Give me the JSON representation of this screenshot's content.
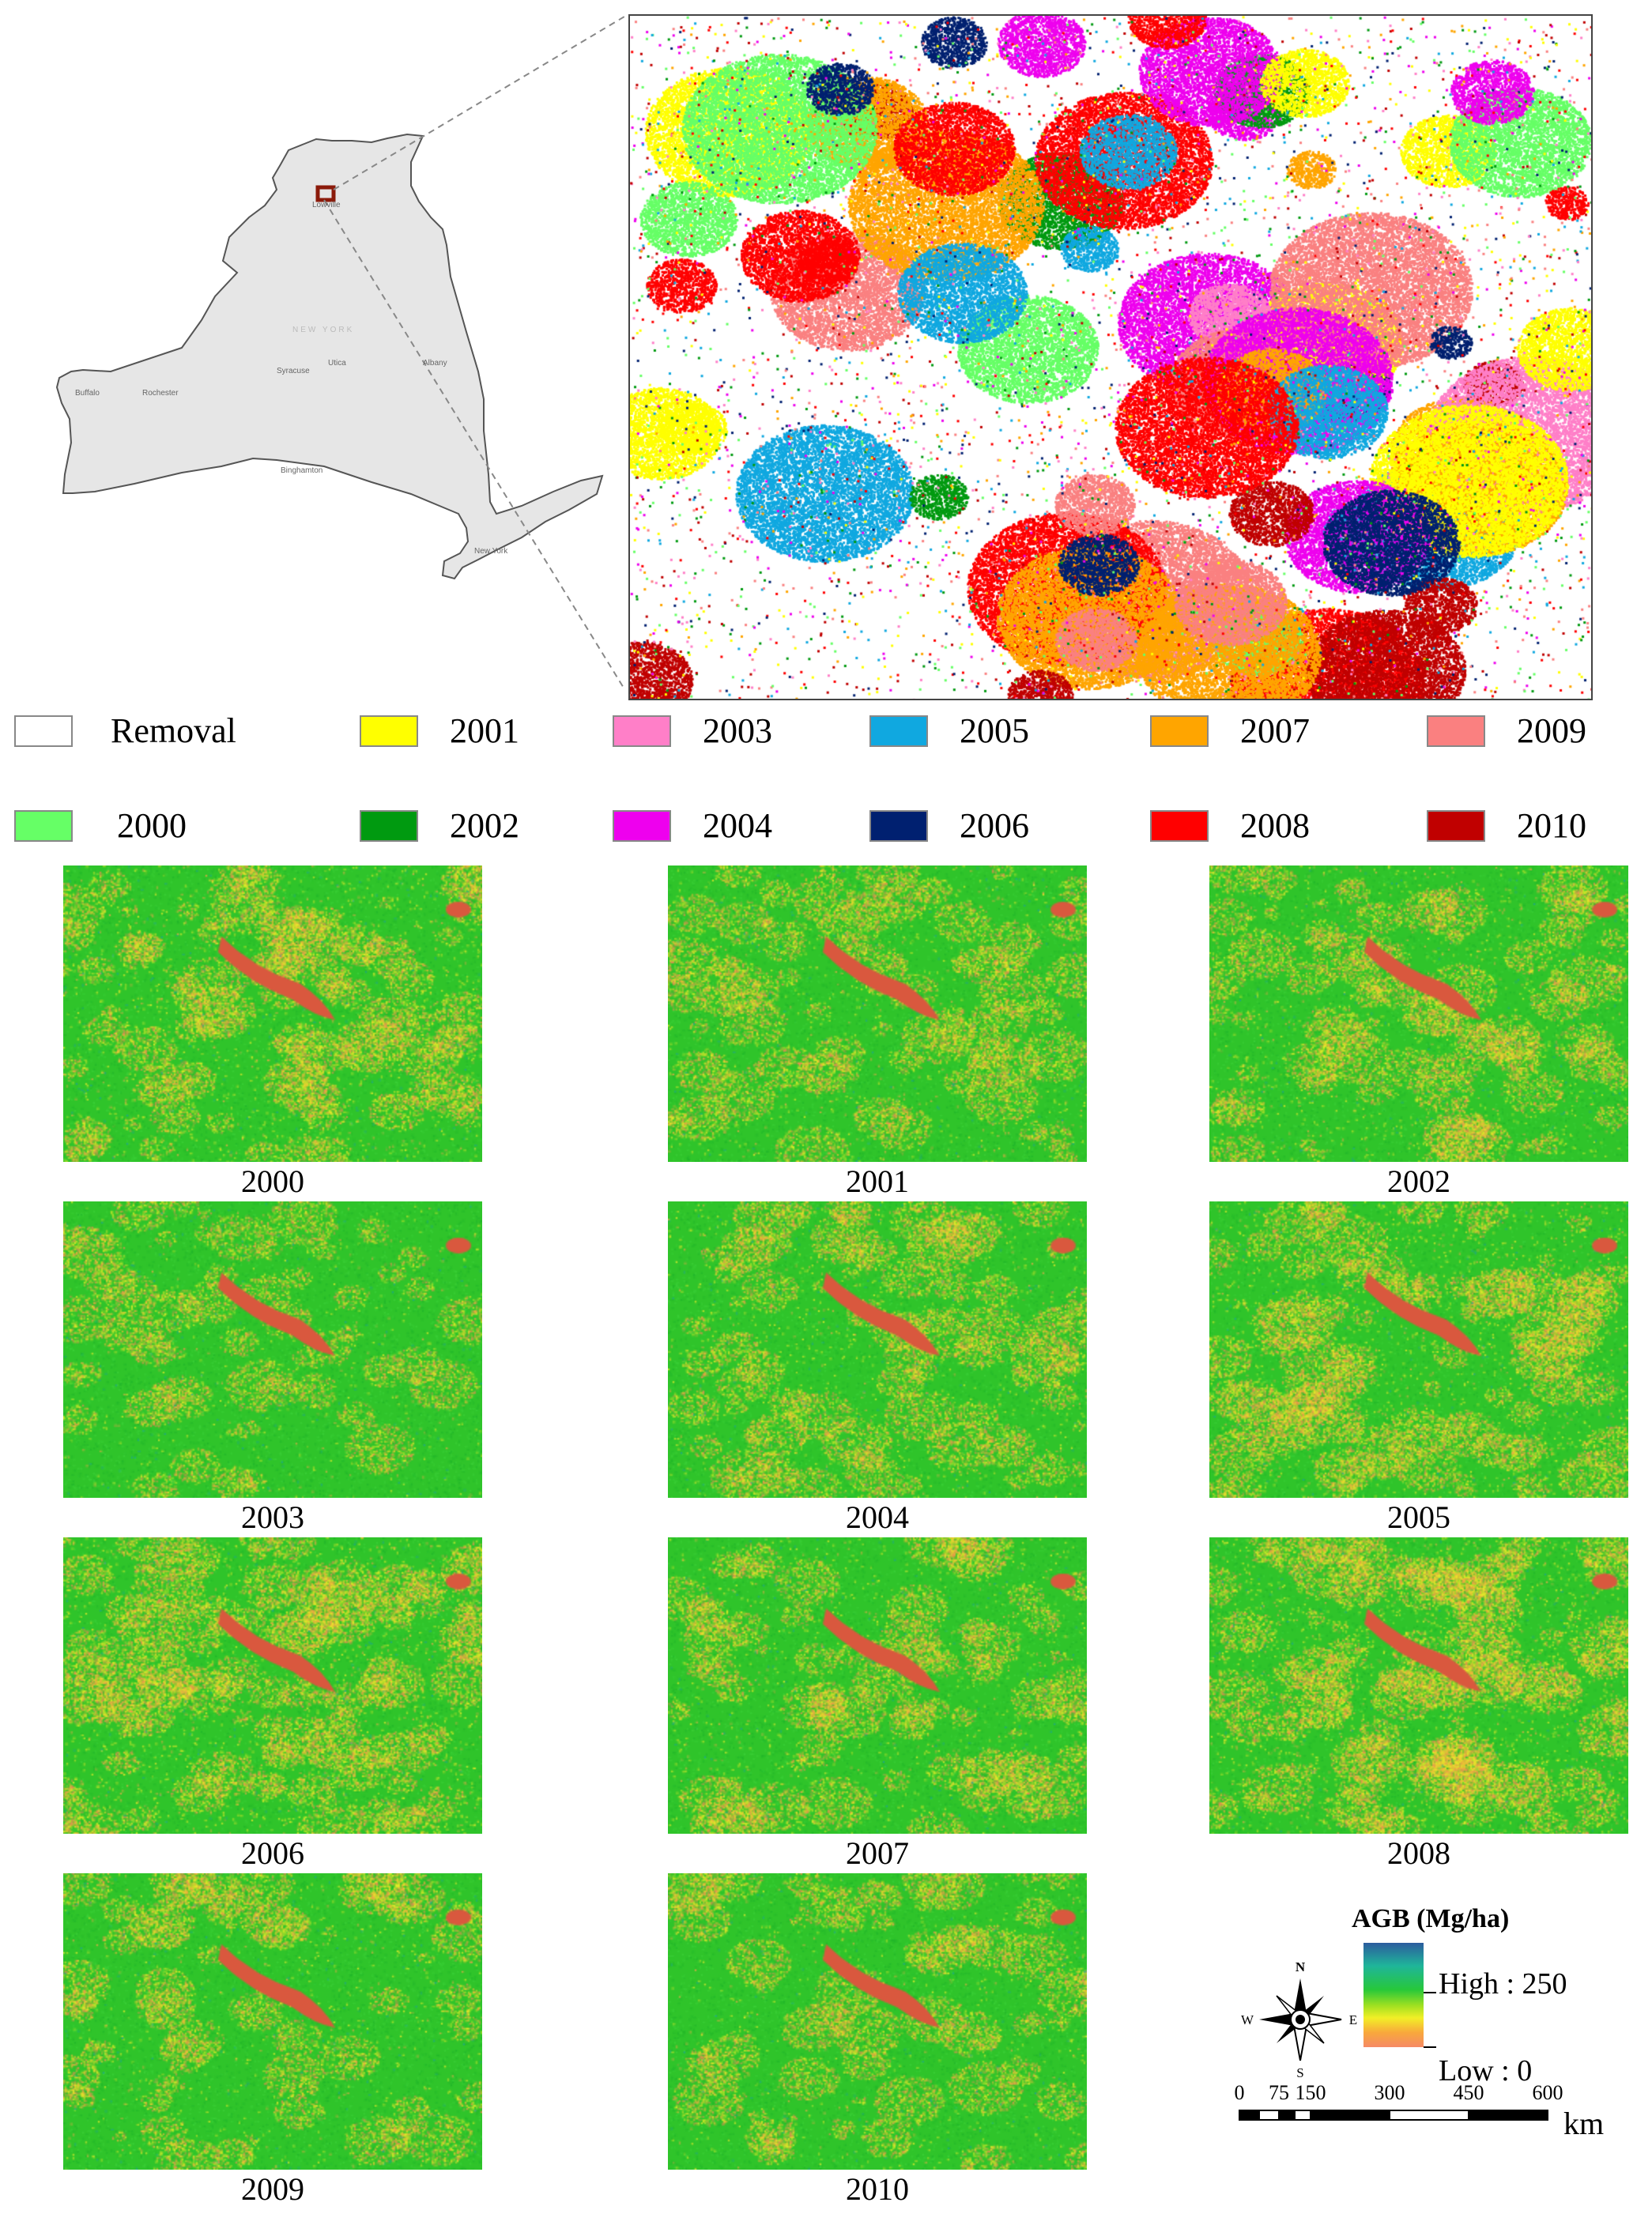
{
  "inset_map": {
    "state_label": "NEW YORK",
    "cities": [
      "Buffalo",
      "Rochester",
      "Syracuse",
      "Utica",
      "Albany",
      "Binghamton",
      "New York",
      "Lowville"
    ],
    "state_fill": "#e6e6e6",
    "highlight_color": "#8b1a0a"
  },
  "legend": {
    "items": [
      {
        "label": "Removal",
        "color": "#ffffff"
      },
      {
        "label": "2001",
        "color": "#ffff00"
      },
      {
        "label": "2003",
        "color": "#ff7fc8"
      },
      {
        "label": "2005",
        "color": "#10a8e0"
      },
      {
        "label": "2007",
        "color": "#ffa500"
      },
      {
        "label": "2009",
        "color": "#fa8080"
      },
      {
        "label": "2000",
        "color": "#66ff66"
      },
      {
        "label": "2002",
        "color": "#009a10"
      },
      {
        "label": "2004",
        "color": "#ee00ee"
      },
      {
        "label": "2006",
        "color": "#002070"
      },
      {
        "label": "2008",
        "color": "#ff0000"
      },
      {
        "label": "2010",
        "color": "#c00000"
      }
    ]
  },
  "agb_panels": [
    {
      "year": "2000",
      "low_fraction": 0.3
    },
    {
      "year": "2001",
      "low_fraction": 0.2
    },
    {
      "year": "2002",
      "low_fraction": 0.28
    },
    {
      "year": "2003",
      "low_fraction": 0.12
    },
    {
      "year": "2004",
      "low_fraction": 0.26
    },
    {
      "year": "2005",
      "low_fraction": 0.38
    },
    {
      "year": "2006",
      "low_fraction": 0.4
    },
    {
      "year": "2007",
      "low_fraction": 0.22
    },
    {
      "year": "2008",
      "low_fraction": 0.45
    },
    {
      "year": "2009",
      "low_fraction": 0.15
    },
    {
      "year": "2010",
      "low_fraction": 0.14
    }
  ],
  "agb_legend": {
    "title": "AGB (Mg/ha)",
    "high_label": "High : 250",
    "low_label": "Low : 0",
    "ramp_colors": [
      "#2c5c9e",
      "#1fb59a",
      "#27c83a",
      "#9ee021",
      "#f2ef26",
      "#f8a83c",
      "#f58a66"
    ]
  },
  "compass": {
    "north": "N",
    "south": "S",
    "east": "E",
    "west": "W"
  },
  "scale_bar": {
    "ticks": [
      "0",
      "75",
      "150",
      "300",
      "450",
      "600"
    ],
    "unit": "km"
  }
}
